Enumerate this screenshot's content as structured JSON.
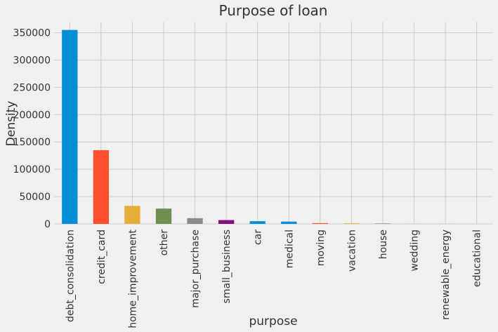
{
  "chart_data": {
    "type": "bar",
    "title": "Purpose of loan",
    "xlabel": "purpose",
    "ylabel": "Density",
    "categories": [
      "debt_consolidation",
      "credit_card",
      "home_improvement",
      "other",
      "major_purchase",
      "small_business",
      "car",
      "medical",
      "moving",
      "vacation",
      "house",
      "wedding",
      "renewable_energy",
      "educational"
    ],
    "values": [
      355000,
      135000,
      33000,
      28000,
      10500,
      7000,
      5000,
      4200,
      1400,
      1100,
      750,
      80,
      30,
      10
    ],
    "colors": [
      "#008fd5",
      "#fc4f30",
      "#e5ae38",
      "#6d904f",
      "#8b8b8b",
      "#810f7c",
      "#008fd5",
      "#008fd5",
      "#fc4f30",
      "#e5ae38",
      "#6d904f",
      "#8b8b8b",
      "#810f7c",
      "#008fd5"
    ],
    "ylim": [
      0,
      370000
    ],
    "yticks": [
      "0",
      "50000",
      "100000",
      "150000",
      "200000",
      "250000",
      "300000",
      "350000"
    ],
    "grid": true,
    "legend": "none"
  }
}
